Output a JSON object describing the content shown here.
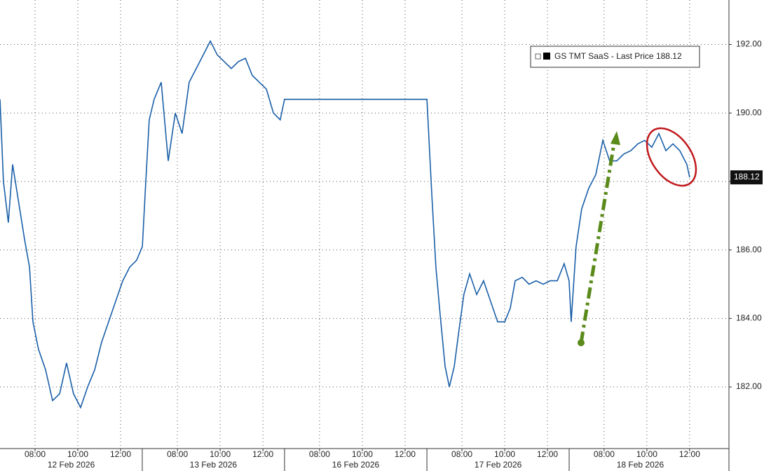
{
  "chart_data": {
    "type": "line",
    "series": [
      {
        "name": "GS TMT SaaS - Last Price 188.12",
        "color": "#1a5fa8",
        "x": [
          0,
          0.16,
          0.39,
          0.59,
          0.82,
          1.15,
          1.38,
          1.54,
          1.8,
          2.13,
          2.46,
          2.79,
          3.11,
          3.44,
          3.77,
          4.1,
          4.43,
          4.75,
          5.08,
          5.41,
          5.74,
          6.07,
          6.39,
          6.66,
          6.82,
          6.98,
          7.21,
          7.54,
          7.87,
          8.2,
          8.52,
          8.85,
          9.18,
          9.51,
          9.84,
          10.16,
          10.49,
          10.82,
          11.15,
          11.48,
          11.8,
          12.13,
          12.46,
          12.79,
          13.11,
          13.31,
          19.97,
          20.07,
          20.2,
          20.39,
          20.59,
          20.82,
          21.02,
          21.25,
          21.48,
          21.7,
          21.97,
          22.3,
          22.62,
          22.95,
          23.28,
          23.61,
          23.87,
          24.1,
          24.43,
          24.75,
          25.08,
          25.41,
          25.74,
          26.07,
          26.39,
          26.62,
          26.72,
          26.95,
          27.21,
          27.54,
          27.87,
          28.2,
          28.52,
          28.85,
          29.18,
          29.51,
          29.84,
          30.16,
          30.49,
          30.82,
          31.15,
          31.48,
          31.8,
          32.13,
          32.26
        ],
        "values": [
          190.4,
          188.0,
          186.8,
          188.5,
          187.6,
          186.3,
          185.5,
          183.9,
          183.1,
          182.5,
          181.6,
          181.8,
          182.7,
          181.8,
          181.4,
          182.0,
          182.5,
          183.3,
          183.9,
          184.5,
          185.1,
          185.5,
          185.7,
          186.1,
          188.0,
          189.8,
          190.4,
          190.9,
          188.6,
          190.0,
          189.4,
          190.9,
          191.3,
          191.7,
          192.1,
          191.7,
          191.5,
          191.3,
          191.5,
          191.6,
          191.1,
          190.9,
          190.7,
          190.0,
          189.8,
          190.4,
          190.4,
          189.2,
          187.6,
          185.5,
          184.1,
          182.6,
          182.0,
          182.6,
          183.7,
          184.7,
          185.3,
          184.7,
          185.1,
          184.5,
          183.9,
          183.9,
          184.3,
          185.1,
          185.2,
          185.0,
          185.1,
          185.0,
          185.1,
          185.1,
          185.6,
          185.1,
          183.9,
          186.1,
          187.2,
          187.8,
          188.2,
          189.2,
          188.6,
          188.6,
          188.8,
          188.9,
          189.1,
          189.2,
          189.0,
          189.4,
          188.9,
          189.1,
          188.9,
          188.5,
          188.12
        ]
      }
    ],
    "last_price": 188.12,
    "xlim": [
      0,
      34.1
    ],
    "ylim": [
      180.2,
      193.3
    ],
    "xticks": [
      {
        "value": 1.64,
        "label": "08:00"
      },
      {
        "value": 3.64,
        "label": "10:00"
      },
      {
        "value": 5.64,
        "label": "12:00"
      },
      {
        "value": 8.3,
        "label": "08:00"
      },
      {
        "value": 10.3,
        "label": "10:00"
      },
      {
        "value": 12.3,
        "label": "12:00"
      },
      {
        "value": 14.95,
        "label": "08:00"
      },
      {
        "value": 16.95,
        "label": "10:00"
      },
      {
        "value": 18.95,
        "label": "12:00"
      },
      {
        "value": 21.61,
        "label": "08:00"
      },
      {
        "value": 23.61,
        "label": "10:00"
      },
      {
        "value": 25.61,
        "label": "12:00"
      },
      {
        "value": 28.26,
        "label": "08:00"
      },
      {
        "value": 30.26,
        "label": "10:00"
      },
      {
        "value": 32.26,
        "label": "12:00"
      }
    ],
    "xgroups": [
      {
        "value": 3.33,
        "label": "12 Feb 2026"
      },
      {
        "value": 9.98,
        "label": "13 Feb 2026"
      },
      {
        "value": 16.64,
        "label": "16 Feb 2026"
      },
      {
        "value": 23.3,
        "label": "17 Feb 2026"
      },
      {
        "value": 29.95,
        "label": "18 Feb 2026"
      }
    ],
    "yticks": [
      {
        "value": 182,
        "label": "182.00"
      },
      {
        "value": 184,
        "label": "184.00"
      },
      {
        "value": 186,
        "label": "186.00"
      },
      {
        "value": 188,
        "label": "188.00"
      },
      {
        "value": 190,
        "label": "190.00"
      },
      {
        "value": 192,
        "label": "192.00"
      }
    ],
    "grid": true
  }
}
